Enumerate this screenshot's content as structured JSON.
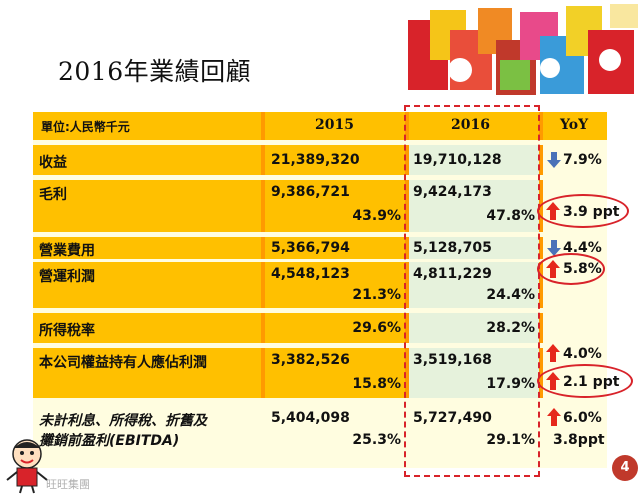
{
  "title": "2016年業績回顧",
  "header": {
    "unit": "單位:人民幣千元",
    "col_2015": "2015",
    "col_2016": "2016",
    "col_yoy": "YoY"
  },
  "rows": [
    {
      "label": "收益",
      "v2015": "21,389,320",
      "v2016": "19,710,128",
      "yoy": "7.9%",
      "dir": "down"
    },
    {
      "label": "毛利",
      "v2015": "9,386,721",
      "v2016": "9,424,173",
      "p2015": "43.9%",
      "p2016": "47.8%",
      "yoy": "3.9 ppt",
      "dir": "up"
    },
    {
      "label": "營業費用",
      "v2015": "5,366,794",
      "v2016": "5,128,705",
      "yoy": "4.4%",
      "dir": "down"
    },
    {
      "label": "營運利潤",
      "v2015": "4,548,123",
      "v2016": "4,811,229",
      "p2015": "21.3%",
      "p2016": "24.4%",
      "yoy": "5.8%",
      "dir": "up"
    },
    {
      "label": "所得稅率",
      "p2015": "29.6%",
      "p2016": "28.2%"
    },
    {
      "label": "本公司權益持有人應佔利潤",
      "v2015": "3,382,526",
      "v2016": "3,519,168",
      "p2015": "15.8%",
      "p2016": "17.9%",
      "yoy": "4.0%",
      "yoy2": "2.1 ppt",
      "dir": "up"
    },
    {
      "label": "未計利息、所得稅、折舊及",
      "label2": "攤銷前盈利(EBITDA)",
      "v2015": "5,404,098",
      "v2016": "5,727,490",
      "p2015": "25.3%",
      "p2016": "29.1%",
      "yoy": "6.0%",
      "yoy2": "3.8ppt",
      "dir": "up"
    }
  ],
  "page_number": "4",
  "footer_mark": "旺旺集團",
  "colors": {
    "band": "#ffc000",
    "separator": "#ff9a00",
    "highlight": "#d8232a",
    "down_arrow": "#4a72b8",
    "up_arrow": "#e5281c"
  }
}
